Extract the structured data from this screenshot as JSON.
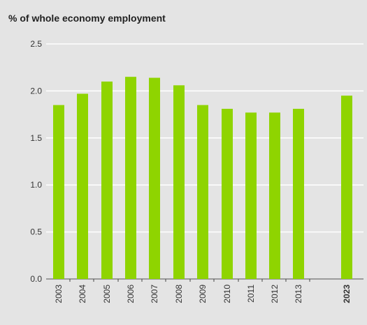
{
  "chart_data": {
    "type": "bar",
    "title": "% of whole economy employment",
    "xlabel": "",
    "ylabel": "",
    "ylim": [
      0,
      2.5
    ],
    "yticks": [
      "0.0",
      "0.5",
      "1.0",
      "1.5",
      "2.0",
      "2.5"
    ],
    "categories": [
      "2003",
      "2004",
      "2005",
      "2006",
      "2007",
      "2008",
      "2009",
      "2010",
      "2011",
      "2012",
      "2013",
      "2023"
    ],
    "bold_categories": [
      "2023"
    ],
    "values": [
      1.85,
      1.97,
      2.1,
      2.15,
      2.14,
      2.06,
      1.85,
      1.81,
      1.77,
      1.77,
      1.81,
      1.95
    ],
    "bar_color": "#8fd400",
    "grid": true,
    "gridline_color": "#ffffff",
    "plot_background": "#e4e4e4"
  }
}
